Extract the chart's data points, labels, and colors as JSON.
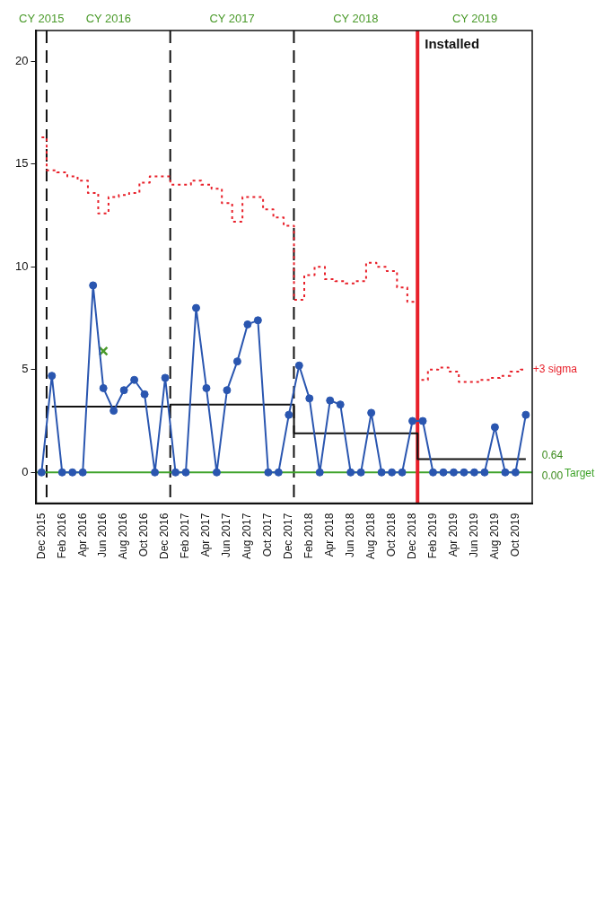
{
  "chart_data": {
    "type": "line",
    "x": [
      "2015-12",
      "2016-01",
      "2016-02",
      "2016-03",
      "2016-04",
      "2016-05",
      "2016-06",
      "2016-07",
      "2016-08",
      "2016-09",
      "2016-10",
      "2016-11",
      "2016-12",
      "2017-01",
      "2017-02",
      "2017-03",
      "2017-04",
      "2017-05",
      "2017-06",
      "2017-07",
      "2017-08",
      "2017-09",
      "2017-10",
      "2017-11",
      "2017-12",
      "2018-01",
      "2018-02",
      "2018-03",
      "2018-04",
      "2018-05",
      "2018-06",
      "2018-07",
      "2018-08",
      "2018-09",
      "2018-10",
      "2018-11",
      "2018-12",
      "2019-01",
      "2019-02",
      "2019-03",
      "2019-04",
      "2019-05",
      "2019-06",
      "2019-07",
      "2019-08",
      "2019-09",
      "2019-10",
      "2019-11"
    ],
    "series": [
      {
        "color": "#2a56b0",
        "values": [
          0,
          4.7,
          0,
          0,
          0,
          9.1,
          4.1,
          3.0,
          4.0,
          4.5,
          3.8,
          0,
          4.6,
          0,
          0,
          8.0,
          4.1,
          0,
          4.0,
          5.4,
          7.2,
          7.4,
          0,
          0,
          2.8,
          5.2,
          3.6,
          0,
          3.5,
          3.3,
          0,
          0,
          2.9,
          0,
          0,
          0,
          2.5,
          2.5,
          0,
          0,
          0,
          0,
          0,
          0,
          2.2,
          0,
          0,
          2.8
        ]
      },
      {
        "type": "step",
        "name": "+3 sigma",
        "color": "#e8202a",
        "line_style": "dotted",
        "marker": "none",
        "values": [
          16.3,
          14.7,
          14.6,
          14.4,
          14.2,
          13.6,
          12.6,
          13.4,
          13.5,
          13.6,
          14.1,
          14.4,
          14.4,
          14.0,
          14.0,
          14.2,
          14.0,
          13.8,
          13.1,
          12.2,
          13.4,
          13.4,
          12.8,
          12.4,
          12.0,
          8.4,
          9.6,
          10.0,
          9.4,
          9.3,
          9.2,
          9.3,
          10.2,
          10.0,
          9.8,
          9.0,
          8.3,
          4.5,
          5.0,
          5.1,
          4.9,
          4.4,
          4.4,
          4.5,
          4.6,
          4.7,
          4.9,
          5.0
        ]
      },
      {
        "type": "step",
        "color": "#111111",
        "line_style": "solid",
        "marker": "none",
        "values": [
          null,
          3.2,
          3.2,
          3.2,
          3.2,
          3.2,
          3.2,
          3.2,
          3.2,
          3.2,
          3.2,
          3.2,
          3.2,
          3.3,
          3.3,
          3.3,
          3.3,
          3.3,
          3.3,
          3.3,
          3.3,
          3.3,
          3.3,
          3.3,
          3.3,
          1.9,
          1.9,
          1.9,
          1.9,
          1.9,
          1.9,
          1.9,
          1.9,
          1.9,
          1.9,
          1.9,
          1.9,
          0.64,
          0.64,
          0.64,
          0.64,
          0.64,
          0.64,
          0.64,
          0.64,
          0.64,
          0.64,
          0.64
        ]
      },
      {
        "type": "scatter",
        "color": "#4a9a2a",
        "marker": "cross",
        "x": [
          "2016-06"
        ],
        "values": [
          5.9
        ]
      }
    ],
    "marker": "circle",
    "line_style": "solid",
    "xlim": [
      "2015-11-16",
      "2019-11-20"
    ],
    "xticks": [
      {
        "value": "2015-12",
        "label": "Dec 2015"
      },
      {
        "value": "2016-02",
        "label": "Feb 2016"
      },
      {
        "value": "2016-04",
        "label": "Apr 2016"
      },
      {
        "value": "2016-06",
        "label": "Jun 2016"
      },
      {
        "value": "2016-08",
        "label": "Aug 2016"
      },
      {
        "value": "2016-10",
        "label": "Oct 2016"
      },
      {
        "value": "2016-12",
        "label": "Dec 2016"
      },
      {
        "value": "2017-02",
        "label": "Feb 2017"
      },
      {
        "value": "2017-04",
        "label": "Apr 2017"
      },
      {
        "value": "2017-06",
        "label": "Jun 2017"
      },
      {
        "value": "2017-08",
        "label": "Aug 2017"
      },
      {
        "value": "2017-10",
        "label": "Oct 2017"
      },
      {
        "value": "2017-12",
        "label": "Dec 2017"
      },
      {
        "value": "2018-02",
        "label": "Feb 2018"
      },
      {
        "value": "2018-04",
        "label": "Apr 2018"
      },
      {
        "value": "2018-06",
        "label": "Jun 2018"
      },
      {
        "value": "2018-08",
        "label": "Aug 2018"
      },
      {
        "value": "2018-10",
        "label": "Oct 2018"
      },
      {
        "value": "2018-12",
        "label": "Dec 2018"
      },
      {
        "value": "2019-02",
        "label": "Feb 2019"
      },
      {
        "value": "2019-04",
        "label": "Apr 2019"
      },
      {
        "value": "2019-06",
        "label": "Jun 2019"
      },
      {
        "value": "2019-08",
        "label": "Aug 2019"
      },
      {
        "value": "2019-10",
        "label": "Oct 2019"
      }
    ],
    "ylim": [
      -1.5,
      21.5
    ],
    "yticks": [
      0,
      5,
      10,
      15,
      20
    ],
    "grid": false,
    "legend": false,
    "ref_lines": [
      {
        "axis": "x",
        "value": "2015-12-16",
        "color": "#111111",
        "line_style": "dashed"
      },
      {
        "axis": "x",
        "value": "2016-12-16",
        "color": "#111111",
        "line_style": "dashed"
      },
      {
        "axis": "x",
        "value": "2017-12-16",
        "color": "#111111",
        "line_style": "dashed"
      },
      {
        "axis": "y",
        "value": 0,
        "label": "Target",
        "color": "#3fa32a",
        "line_style": "solid"
      },
      {
        "axis": "x",
        "value": "2018-12-16",
        "label": "Installed",
        "color": "#e8202a",
        "line_style": "solid"
      }
    ],
    "annotations": [
      "CY 2015",
      "CY 2016",
      "CY 2017",
      "CY 2018",
      "CY 2019",
      {
        "text": "0.64",
        "x": "2019-11",
        "y": 0.64
      },
      {
        "text": "0.00",
        "x": "2019-11",
        "y": 0
      }
    ]
  }
}
